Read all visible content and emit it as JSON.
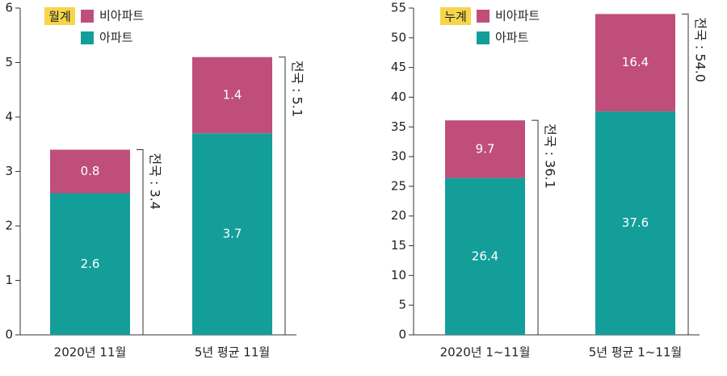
{
  "chart_data": [
    {
      "type": "stacked_bar",
      "legend_title": "월계",
      "categories": [
        "2020년 11월",
        "5년 평균 11월"
      ],
      "series": [
        {
          "name": "아파트",
          "color": "#149e9a",
          "values": [
            2.6,
            3.7
          ]
        },
        {
          "name": "비아파트",
          "color": "#bf4f7a",
          "values": [
            0.8,
            1.4
          ]
        }
      ],
      "annotations": [
        "전국 : 3.4",
        "전국 : 5.1"
      ],
      "ylim": [
        0,
        6
      ],
      "yticks": [
        0,
        1,
        2,
        3,
        4,
        5,
        6
      ]
    },
    {
      "type": "stacked_bar",
      "legend_title": "누계",
      "categories": [
        "2020년 1~11월",
        "5년 평균 1~11월"
      ],
      "series": [
        {
          "name": "아파트",
          "color": "#149e9a",
          "values": [
            26.4,
            37.6
          ]
        },
        {
          "name": "비아파트",
          "color": "#bf4f7a",
          "values": [
            9.7,
            16.4
          ]
        }
      ],
      "annotations": [
        "전국 : 36.1",
        "전국 : 54.0"
      ],
      "ylim": [
        0,
        55
      ],
      "yticks": [
        0,
        5,
        10,
        15,
        20,
        25,
        30,
        35,
        40,
        45,
        50,
        55
      ]
    }
  ]
}
